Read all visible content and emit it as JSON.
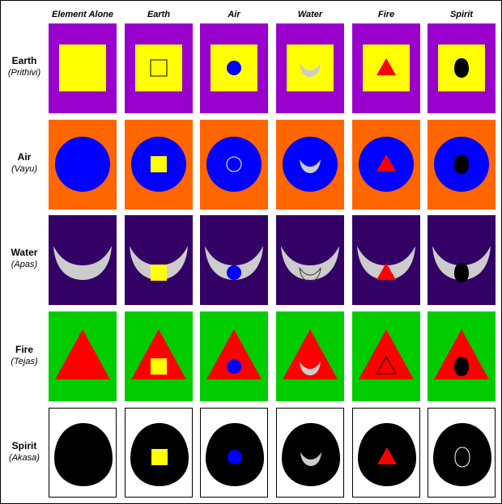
{
  "columns": [
    {
      "label": "Element Alone"
    },
    {
      "label": "Earth"
    },
    {
      "label": "Air"
    },
    {
      "label": "Water"
    },
    {
      "label": "Fire"
    },
    {
      "label": "Spirit"
    }
  ],
  "rows": [
    {
      "name": "Earth",
      "sanskrit": "(Prithivi)"
    },
    {
      "name": "Air",
      "sanskrit": "(Vayu)"
    },
    {
      "name": "Water",
      "sanskrit": "(Apas)"
    },
    {
      "name": "Fire",
      "sanskrit": "(Tejas)"
    },
    {
      "name": "Spirit",
      "sanskrit": "(Akasa)"
    }
  ],
  "elements": {
    "earth": {
      "shape": "square",
      "symbol_color": "#ffff00",
      "background": "#9900cc"
    },
    "air": {
      "shape": "circle",
      "symbol_color": "#0000ff",
      "background": "#ff6600"
    },
    "water": {
      "shape": "crescent",
      "symbol_color": "#cccccc",
      "background": "#330066"
    },
    "fire": {
      "shape": "triangle",
      "symbol_color": "#ff0000",
      "background": "#00cc00"
    },
    "spirit": {
      "shape": "egg",
      "symbol_color": "#000000",
      "background": "#ffffff"
    }
  },
  "row_keys": [
    "earth",
    "air",
    "water",
    "fire",
    "spirit"
  ],
  "col_keys": [
    "alone",
    "earth",
    "air",
    "water",
    "fire",
    "spirit"
  ]
}
